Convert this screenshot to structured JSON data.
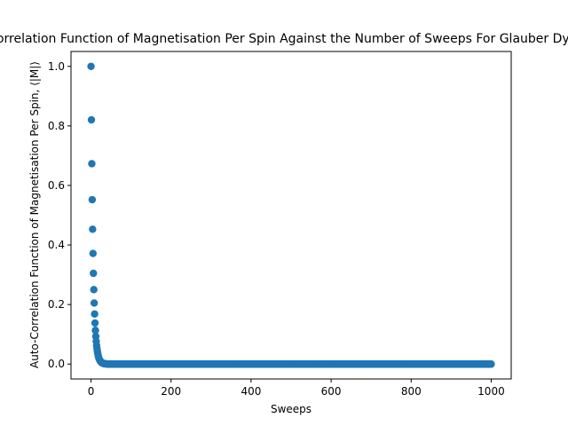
{
  "chart_data": {
    "type": "scatter",
    "title": "Auto-Correlation Function of Magnetisation Per Spin Against the Number of Sweeps For Glauber Dynamics",
    "xlabel": "Sweeps",
    "ylabel": "Auto-Correlation Function of Magnetisation Per Spin, ⟨|M|⟩",
    "xlim": [
      -50,
      1050
    ],
    "ylim": [
      -0.05,
      1.05
    ],
    "xticks": [
      0,
      200,
      400,
      600,
      800,
      1000
    ],
    "xtick_labels": [
      "0",
      "200",
      "400",
      "600",
      "800",
      "1000"
    ],
    "yticks": [
      0.0,
      0.2,
      0.4,
      0.6,
      0.8,
      1.0
    ],
    "ytick_labels": [
      "0.0",
      "0.2",
      "0.4",
      "0.6",
      "0.8",
      "1.0"
    ],
    "grid": false,
    "legend": "none",
    "marker_color": "#1f77b4",
    "series": [
      {
        "description": "Exponential decay, A(t) ≈ exp(-t/5.05), plotted for t = 0…1000 (every sweep)",
        "x_start": 0,
        "x_end": 1000,
        "x_step": 1,
        "decay_time": 5.05,
        "sample_points": [
          {
            "x": 0,
            "y": 1.0
          },
          {
            "x": 1,
            "y": 0.82
          },
          {
            "x": 2,
            "y": 0.675
          },
          {
            "x": 3,
            "y": 0.555
          },
          {
            "x": 4,
            "y": 0.455
          },
          {
            "x": 5,
            "y": 0.373
          },
          {
            "x": 6,
            "y": 0.307
          },
          {
            "x": 7,
            "y": 0.252
          },
          {
            "x": 8,
            "y": 0.207
          },
          {
            "x": 9,
            "y": 0.171
          },
          {
            "x": 10,
            "y": 0.141
          },
          {
            "x": 15,
            "y": 0.05
          },
          {
            "x": 20,
            "y": 0.019
          },
          {
            "x": 40,
            "y": 0.0
          },
          {
            "x": 1000,
            "y": 0.0
          }
        ]
      }
    ]
  }
}
